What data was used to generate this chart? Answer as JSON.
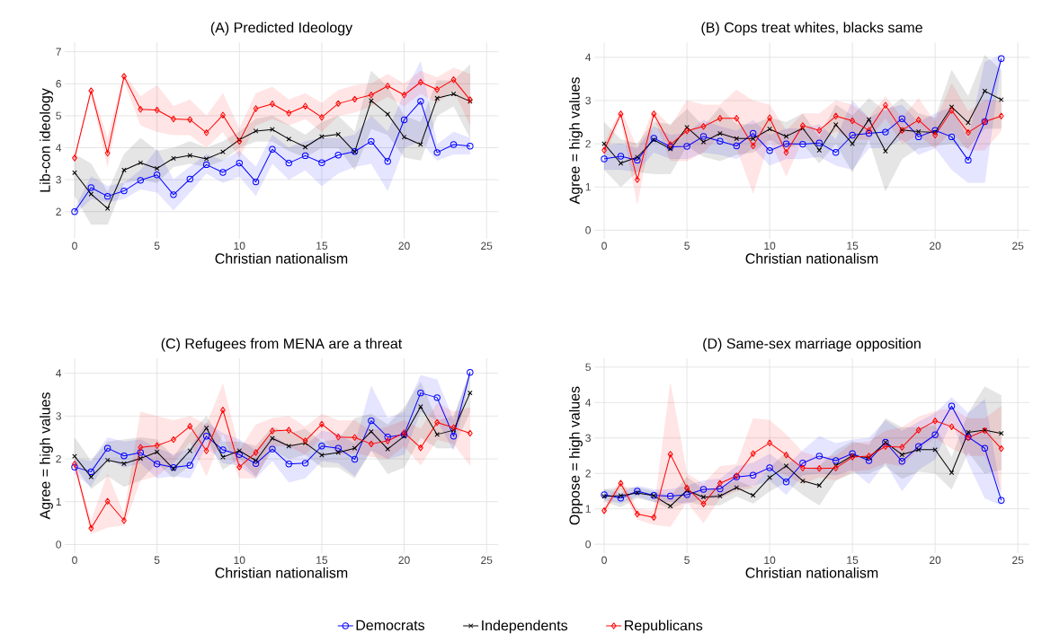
{
  "chart_data": [
    {
      "type": "line",
      "title": "(A) Predicted Ideology",
      "xlabel": "Christian nationalism",
      "ylabel": "Lib-con ideology",
      "x": [
        0,
        1,
        2,
        3,
        4,
        5,
        6,
        7,
        8,
        9,
        10,
        11,
        12,
        13,
        14,
        15,
        16,
        17,
        18,
        19,
        20,
        21,
        22,
        23,
        24
      ],
      "xlim": [
        -0.6,
        25.7
      ],
      "xticks": [
        0,
        5,
        10,
        15,
        20,
        25
      ],
      "ylim": [
        1.15,
        7.3
      ],
      "yticks": [
        2,
        3,
        4,
        5,
        6,
        7
      ],
      "grid": true,
      "series": [
        {
          "color": "#0000ff",
          "marker": "circle",
          "values": [
            2.0,
            2.75,
            2.48,
            2.65,
            2.98,
            3.15,
            2.53,
            3.02,
            3.47,
            3.23,
            3.52,
            2.93,
            3.95,
            3.52,
            3.75,
            3.53,
            3.77,
            3.88,
            4.2,
            3.57,
            4.87,
            5.45,
            3.85,
            4.1,
            4.05
          ],
          "lower": [
            1.9,
            2.4,
            2.3,
            2.4,
            2.7,
            2.6,
            2.05,
            2.6,
            3.2,
            2.9,
            3.1,
            2.5,
            3.5,
            3.0,
            3.3,
            2.8,
            3.2,
            3.4,
            3.5,
            2.65,
            4.0,
            4.2,
            3.6,
            3.8,
            3.8
          ],
          "upper": [
            2.1,
            3.1,
            2.8,
            2.9,
            3.3,
            3.95,
            3.0,
            3.4,
            3.8,
            3.6,
            3.9,
            3.4,
            4.4,
            4.0,
            4.2,
            4.3,
            4.3,
            4.4,
            5.0,
            4.5,
            5.7,
            6.7,
            4.1,
            4.5,
            4.3
          ]
        },
        {
          "color": "#000000",
          "marker": "cross",
          "values": [
            3.22,
            2.55,
            2.1,
            3.3,
            3.53,
            3.35,
            3.67,
            3.76,
            3.65,
            3.87,
            4.25,
            4.52,
            4.57,
            4.27,
            4.02,
            4.35,
            4.42,
            3.87,
            5.47,
            5.05,
            4.33,
            4.1,
            5.55,
            5.68,
            5.45
          ],
          "lower": [
            2.5,
            1.6,
            1.6,
            2.9,
            3.0,
            2.9,
            3.4,
            3.5,
            3.4,
            3.6,
            4.0,
            4.2,
            4.2,
            3.9,
            3.7,
            4.0,
            4.0,
            3.3,
            4.6,
            4.4,
            3.7,
            3.6,
            5.0,
            5.3,
            4.3
          ],
          "upper": [
            3.8,
            3.5,
            2.6,
            3.8,
            4.3,
            3.9,
            4.0,
            4.2,
            4.0,
            4.2,
            4.5,
            4.9,
            5.0,
            4.7,
            4.4,
            4.8,
            5.0,
            4.5,
            6.4,
            5.9,
            5.0,
            4.8,
            6.1,
            6.1,
            6.6
          ]
        },
        {
          "color": "#ff0000",
          "marker": "diamond",
          "values": [
            3.68,
            5.78,
            3.83,
            6.23,
            5.2,
            5.18,
            4.9,
            4.88,
            4.47,
            5.02,
            4.2,
            5.22,
            5.37,
            5.08,
            5.3,
            4.95,
            5.38,
            5.52,
            5.65,
            5.93,
            5.65,
            6.05,
            5.82,
            6.13,
            5.5
          ],
          "lower": [
            3.6,
            5.7,
            3.4,
            6.1,
            4.7,
            4.5,
            4.4,
            4.4,
            4.0,
            4.5,
            3.7,
            4.7,
            4.9,
            4.7,
            4.9,
            4.5,
            5.0,
            5.1,
            5.3,
            5.6,
            5.3,
            5.7,
            5.4,
            5.8,
            4.7
          ],
          "upper": [
            3.75,
            5.85,
            4.3,
            6.3,
            5.6,
            5.95,
            5.3,
            5.5,
            5.0,
            5.7,
            4.6,
            5.7,
            5.9,
            5.5,
            5.7,
            5.4,
            5.8,
            5.95,
            6.0,
            6.3,
            6.0,
            6.4,
            6.2,
            6.5,
            6.3
          ]
        }
      ]
    },
    {
      "type": "line",
      "title": "(B) Cops treat whites, blacks same",
      "xlabel": "Christian nationalism",
      "ylabel": "Agree = high values",
      "x": [
        0,
        1,
        2,
        3,
        4,
        5,
        6,
        7,
        8,
        9,
        10,
        11,
        12,
        13,
        14,
        15,
        16,
        17,
        18,
        19,
        20,
        21,
        22,
        23,
        24
      ],
      "xlim": [
        -0.6,
        25.7
      ],
      "xticks": [
        0,
        5,
        10,
        15,
        20,
        25
      ],
      "ylim": [
        -0.2,
        4.35
      ],
      "yticks": [
        0,
        1,
        2,
        3,
        4
      ],
      "grid": true,
      "series": [
        {
          "color": "#0000ff",
          "marker": "circle",
          "values": [
            1.65,
            1.71,
            1.62,
            2.13,
            1.93,
            1.94,
            2.17,
            2.06,
            1.95,
            2.24,
            1.84,
            2.0,
            1.99,
            2.02,
            1.8,
            2.2,
            2.24,
            2.27,
            2.58,
            2.16,
            2.31,
            2.16,
            1.62,
            2.51,
            3.97
          ],
          "lower": [
            1.4,
            1.4,
            1.35,
            1.8,
            1.65,
            1.65,
            1.8,
            1.75,
            1.65,
            1.9,
            1.5,
            1.65,
            1.65,
            1.7,
            1.5,
            1.4,
            1.9,
            1.9,
            2.1,
            1.75,
            1.9,
            1.4,
            1.1,
            1.1,
            3.9
          ],
          "upper": [
            1.95,
            2.0,
            1.9,
            2.4,
            2.2,
            2.25,
            2.55,
            2.4,
            2.3,
            2.55,
            2.2,
            2.35,
            2.35,
            2.45,
            2.1,
            3.0,
            2.6,
            2.8,
            2.9,
            2.5,
            2.7,
            2.85,
            2.1,
            3.9,
            4.05
          ]
        },
        {
          "color": "#000000",
          "marker": "cross",
          "values": [
            2.0,
            1.55,
            1.69,
            2.09,
            1.88,
            2.38,
            2.04,
            2.24,
            2.12,
            2.12,
            2.34,
            2.17,
            2.36,
            1.85,
            2.44,
            2.0,
            2.56,
            1.83,
            2.32,
            2.28,
            2.26,
            2.85,
            2.49,
            3.22,
            3.02
          ],
          "lower": [
            1.4,
            1.0,
            1.35,
            1.3,
            1.3,
            1.95,
            1.7,
            1.6,
            1.75,
            1.8,
            2.1,
            1.9,
            2.0,
            1.55,
            2.0,
            1.35,
            2.1,
            0.9,
            1.65,
            1.9,
            1.95,
            2.0,
            1.9,
            2.35,
            2.35
          ],
          "upper": [
            2.5,
            2.1,
            2.0,
            2.5,
            2.45,
            2.8,
            2.4,
            2.85,
            2.45,
            2.45,
            2.6,
            2.5,
            2.7,
            2.15,
            2.9,
            2.65,
            3.05,
            2.75,
            3.05,
            2.7,
            2.6,
            3.7,
            3.1,
            4.05,
            3.7
          ]
        },
        {
          "color": "#ff0000",
          "marker": "diamond",
          "values": [
            1.85,
            2.69,
            1.17,
            2.69,
            1.98,
            2.3,
            2.4,
            2.59,
            2.59,
            1.95,
            2.6,
            1.8,
            2.42,
            2.31,
            2.64,
            2.53,
            2.31,
            2.89,
            2.31,
            2.55,
            2.2,
            2.77,
            2.26,
            2.51,
            2.64
          ],
          "lower": [
            1.7,
            2.6,
            0.6,
            2.6,
            1.6,
            1.6,
            1.8,
            2.2,
            1.9,
            0.85,
            2.1,
            1.25,
            2.1,
            2.0,
            2.3,
            2.1,
            2.1,
            2.6,
            2.0,
            2.2,
            1.9,
            2.3,
            1.85,
            1.85,
            2.3
          ],
          "upper": [
            2.0,
            2.8,
            1.9,
            2.8,
            2.4,
            3.0,
            2.9,
            2.9,
            3.25,
            3.0,
            2.9,
            2.3,
            2.7,
            2.7,
            3.0,
            2.9,
            2.6,
            3.1,
            2.6,
            3.05,
            2.5,
            3.4,
            2.75,
            3.0,
            3.0
          ]
        }
      ]
    },
    {
      "type": "line",
      "title": "(C) Refugees from MENA are a threat",
      "xlabel": "Christian nationalism",
      "ylabel": "Agree = high values",
      "x": [
        0,
        1,
        2,
        3,
        4,
        5,
        6,
        7,
        8,
        9,
        10,
        11,
        12,
        13,
        14,
        15,
        16,
        17,
        18,
        19,
        20,
        21,
        22,
        23,
        24
      ],
      "xlim": [
        -0.6,
        25.7
      ],
      "xticks": [
        0,
        5,
        10,
        15,
        20,
        25
      ],
      "ylim": [
        -0.2,
        4.35
      ],
      "yticks": [
        0,
        1,
        2,
        3,
        4
      ],
      "grid": true,
      "series": [
        {
          "color": "#0000ff",
          "marker": "circle",
          "values": [
            1.81,
            1.7,
            2.25,
            2.07,
            2.15,
            1.88,
            1.8,
            1.85,
            2.53,
            2.21,
            2.1,
            1.89,
            2.23,
            1.88,
            1.9,
            2.3,
            2.25,
            1.99,
            2.89,
            2.51,
            2.57,
            3.54,
            3.43,
            2.53,
            4.02
          ],
          "lower": [
            1.65,
            1.35,
            2.0,
            1.8,
            1.9,
            1.55,
            1.6,
            1.55,
            2.3,
            1.9,
            1.85,
            1.55,
            1.95,
            1.45,
            1.55,
            1.95,
            1.9,
            1.6,
            2.2,
            2.0,
            2.1,
            3.1,
            2.9,
            2.2,
            3.95
          ],
          "upper": [
            2.0,
            1.95,
            2.5,
            2.4,
            2.45,
            2.25,
            2.1,
            2.25,
            2.85,
            2.6,
            2.45,
            2.2,
            2.55,
            2.3,
            2.3,
            2.65,
            2.6,
            2.35,
            3.7,
            2.95,
            3.1,
            3.95,
            3.85,
            2.9,
            4.1
          ]
        },
        {
          "color": "#000000",
          "marker": "cross",
          "values": [
            2.06,
            1.58,
            1.97,
            1.89,
            2.01,
            2.16,
            1.77,
            2.19,
            2.72,
            2.04,
            2.19,
            1.96,
            2.48,
            2.3,
            2.37,
            2.09,
            2.15,
            2.25,
            2.64,
            2.23,
            2.53,
            3.22,
            2.57,
            2.67,
            3.54
          ],
          "lower": [
            1.85,
            1.3,
            1.6,
            1.35,
            1.5,
            1.9,
            1.55,
            1.85,
            2.5,
            1.75,
            2.0,
            1.6,
            2.2,
            2.0,
            2.1,
            1.8,
            1.8,
            1.55,
            2.2,
            1.65,
            1.8,
            2.5,
            2.25,
            2.25,
            3.1
          ],
          "upper": [
            2.5,
            1.95,
            2.4,
            2.45,
            2.5,
            2.45,
            2.05,
            2.6,
            3.0,
            2.4,
            2.4,
            2.3,
            2.75,
            2.6,
            2.7,
            2.4,
            2.45,
            2.95,
            3.05,
            2.8,
            3.2,
            3.8,
            2.9,
            3.0,
            4.0
          ]
        },
        {
          "color": "#ff0000",
          "marker": "diamond",
          "values": [
            1.88,
            0.38,
            1.01,
            0.56,
            2.27,
            2.31,
            2.45,
            2.76,
            2.19,
            3.14,
            1.81,
            2.15,
            2.65,
            2.67,
            2.42,
            2.81,
            2.51,
            2.5,
            2.35,
            2.42,
            2.61,
            2.26,
            2.85,
            2.73,
            2.6
          ],
          "lower": [
            1.8,
            0.25,
            0.4,
            0.45,
            1.5,
            1.6,
            1.9,
            2.4,
            1.6,
            2.6,
            1.55,
            1.55,
            2.3,
            2.3,
            2.1,
            2.5,
            2.1,
            2.15,
            2.05,
            2.0,
            2.3,
            1.85,
            2.45,
            2.35,
            1.85
          ],
          "upper": [
            1.95,
            0.55,
            1.65,
            0.7,
            3.1,
            3.0,
            2.9,
            3.0,
            2.8,
            3.75,
            2.2,
            2.8,
            2.95,
            3.0,
            2.75,
            3.05,
            2.9,
            2.9,
            2.65,
            2.75,
            2.9,
            2.7,
            3.3,
            3.1,
            3.2
          ]
        }
      ]
    },
    {
      "type": "line",
      "title": "(D) Same-sex marriage opposition",
      "xlabel": "Christian nationalism",
      "ylabel": "Oppose = high values",
      "x": [
        0,
        1,
        2,
        3,
        4,
        5,
        6,
        7,
        8,
        9,
        10,
        11,
        12,
        13,
        14,
        15,
        16,
        17,
        18,
        19,
        20,
        21,
        22,
        23,
        24
      ],
      "xlim": [
        -0.6,
        25.7
      ],
      "xticks": [
        0,
        5,
        10,
        15,
        20,
        25
      ],
      "ylim": [
        -0.25,
        5.25
      ],
      "yticks": [
        0,
        1,
        2,
        3,
        4,
        5
      ],
      "grid": true,
      "legend": "bottom",
      "series": [
        {
          "name": "Democrats",
          "color": "#0000ff",
          "marker": "circle",
          "values": [
            1.4,
            1.3,
            1.5,
            1.38,
            1.36,
            1.4,
            1.55,
            1.56,
            1.9,
            1.95,
            2.16,
            1.76,
            2.29,
            2.49,
            2.36,
            2.56,
            2.36,
            2.88,
            2.34,
            2.76,
            3.09,
            3.9,
            3.03,
            2.71,
            1.24
          ],
          "lower": [
            1.25,
            1.15,
            1.35,
            1.2,
            1.2,
            1.15,
            1.3,
            1.3,
            1.6,
            1.65,
            1.8,
            1.4,
            1.95,
            2.0,
            1.95,
            2.1,
            1.7,
            2.3,
            1.5,
            2.1,
            2.4,
            3.5,
            2.3,
            1.3,
            1.1
          ],
          "upper": [
            1.55,
            1.45,
            1.65,
            1.55,
            1.55,
            1.65,
            1.8,
            1.85,
            2.2,
            2.3,
            2.55,
            2.2,
            2.65,
            3.05,
            2.85,
            2.95,
            3.0,
            3.5,
            3.2,
            3.45,
            3.7,
            4.15,
            3.7,
            4.1,
            1.4
          ]
        },
        {
          "name": "Independents",
          "color": "#000000",
          "marker": "cross",
          "values": [
            1.35,
            1.37,
            1.45,
            1.37,
            1.08,
            1.52,
            1.33,
            1.36,
            1.6,
            1.38,
            1.88,
            2.21,
            1.79,
            1.66,
            2.22,
            2.5,
            2.44,
            2.88,
            2.53,
            2.67,
            2.67,
            2.02,
            3.16,
            3.22,
            3.13
          ],
          "lower": [
            1.2,
            1.05,
            1.3,
            1.2,
            1.0,
            1.2,
            1.1,
            1.1,
            1.35,
            1.15,
            1.5,
            1.75,
            1.4,
            1.1,
            1.8,
            2.0,
            2.0,
            2.2,
            1.85,
            2.05,
            2.0,
            1.55,
            2.6,
            2.0,
            2.1
          ],
          "upper": [
            1.55,
            1.6,
            1.6,
            1.5,
            1.35,
            1.9,
            1.55,
            1.6,
            1.8,
            1.6,
            2.15,
            2.6,
            2.1,
            2.2,
            2.65,
            2.9,
            2.8,
            3.55,
            3.3,
            3.3,
            3.35,
            2.45,
            3.7,
            4.45,
            4.2
          ]
        },
        {
          "name": "Republicans",
          "color": "#ff0000",
          "marker": "diamond",
          "values": [
            0.95,
            1.72,
            0.85,
            0.76,
            2.54,
            1.59,
            1.14,
            1.72,
            1.93,
            2.56,
            2.86,
            2.52,
            2.15,
            2.14,
            2.15,
            2.46,
            2.49,
            2.76,
            2.74,
            3.22,
            3.48,
            3.32,
            3.01,
            3.21,
            2.7
          ],
          "lower": [
            0.85,
            1.6,
            0.7,
            0.55,
            0.5,
            1.2,
            0.6,
            1.3,
            1.5,
            1.6,
            2.15,
            1.95,
            1.7,
            1.9,
            1.8,
            2.05,
            2.1,
            2.3,
            2.2,
            2.7,
            3.0,
            2.7,
            2.5,
            2.5,
            1.5
          ],
          "upper": [
            1.05,
            1.85,
            1.0,
            0.95,
            4.55,
            2.0,
            1.7,
            2.2,
            2.25,
            3.55,
            3.5,
            3.1,
            2.6,
            2.45,
            2.5,
            2.85,
            2.9,
            3.2,
            3.3,
            3.6,
            3.75,
            3.85,
            3.55,
            3.55,
            3.9
          ]
        }
      ]
    }
  ]
}
